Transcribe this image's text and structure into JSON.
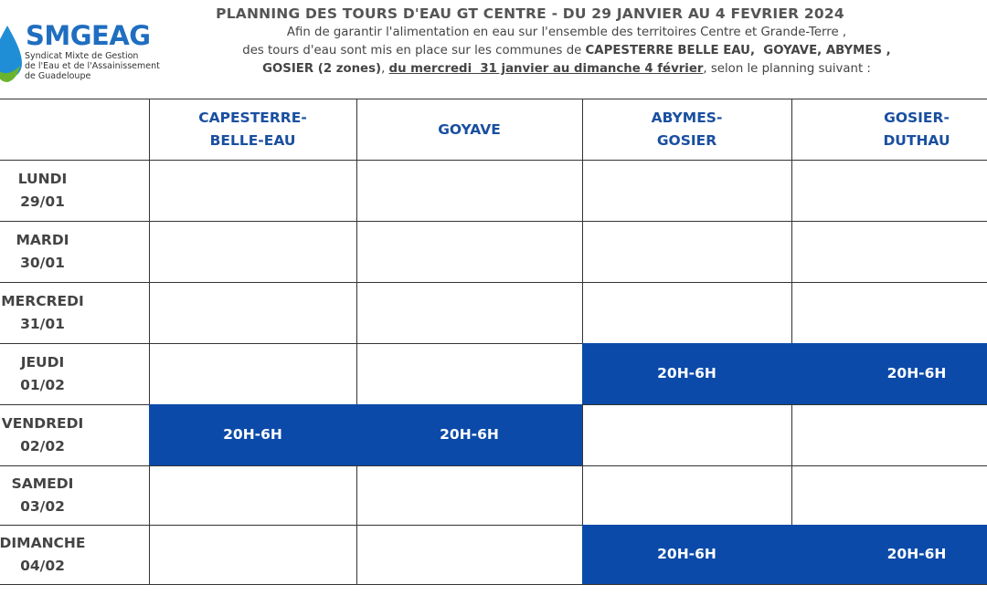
{
  "logo": {
    "name": "SMGEAG",
    "subtitle_lines": [
      "Syndicat Mixte de Gestion",
      "de l'Eau et de l'Assainissement",
      "de Guadeloupe"
    ]
  },
  "header": {
    "title": "PLANNING DES TOURS D'EAU GT CENTRE - DU 29 JANVIER AU 4 FEVRIER 2024",
    "intro_lines": [
      [
        {
          "text": "Afin de garantir l'alimentation en eau sur l'ensemble des territoires Centre et Grande-Terre ,"
        }
      ],
      [
        {
          "text": "des tours d'eau sont mis en place sur les communes de "
        },
        {
          "text": "CAPESTERRE BELLE EAU,  GOYAVE, ABYMES ,",
          "bold": true
        }
      ],
      [
        {
          "text": "GOSIER (2 zones)",
          "bold": true
        },
        {
          "text": ", "
        },
        {
          "text": "du mercredi  31 janvier au dimanche 4 février",
          "bold": true,
          "underline": true
        },
        {
          "text": ", selon le planning suivant :"
        }
      ]
    ]
  },
  "table": {
    "columns": [
      [
        "CAPESTERRE-",
        "BELLE-EAU"
      ],
      [
        "GOYAVE"
      ],
      [
        "ABYMES-",
        "GOSIER"
      ],
      [
        "GOSIER-",
        "DUTHAU"
      ]
    ],
    "rows": [
      {
        "day": [
          "LUNDI",
          "29/01"
        ],
        "cells": [
          null,
          null,
          null,
          null
        ]
      },
      {
        "day": [
          "MARDI",
          "30/01"
        ],
        "cells": [
          null,
          null,
          null,
          null
        ]
      },
      {
        "day": [
          "MERCREDI",
          "31/01"
        ],
        "cells": [
          null,
          null,
          null,
          null
        ]
      },
      {
        "day": [
          "JEUDI",
          "01/02"
        ],
        "cells": [
          null,
          null,
          "20H-6H",
          "20H-6H"
        ]
      },
      {
        "day": [
          "VENDREDI",
          "02/02"
        ],
        "cells": [
          "20H-6H",
          "20H-6H",
          null,
          null
        ]
      },
      {
        "day": [
          "SAMEDI",
          "03/02"
        ],
        "cells": [
          null,
          null,
          null,
          null
        ]
      },
      {
        "day": [
          "DIMANCHE",
          "04/02"
        ],
        "cells": [
          null,
          null,
          "20H-6H",
          "20H-6H"
        ]
      }
    ]
  }
}
